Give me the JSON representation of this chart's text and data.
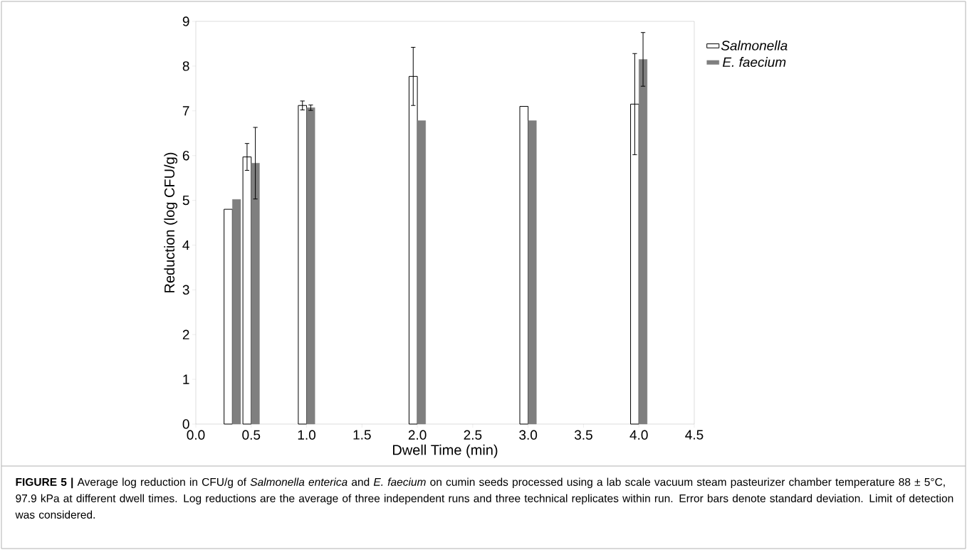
{
  "chart_data": {
    "type": "bar",
    "xlabel": "Dwell Time (min)",
    "ylabel": "Reduction (log CFU/g)",
    "x": [
      0.33,
      0.5,
      1.0,
      2.0,
      3.0,
      4.0
    ],
    "series": [
      {
        "name": "Salmonella",
        "color": "#ffffff",
        "values": [
          4.8,
          5.97,
          7.12,
          7.77,
          7.1,
          7.15
        ],
        "errors": [
          null,
          0.3,
          0.1,
          0.65,
          null,
          1.13
        ]
      },
      {
        "name": "E. faecium",
        "color": "#7f7f7f",
        "values": [
          5.02,
          5.83,
          7.07,
          6.78,
          6.78,
          8.15
        ],
        "errors": [
          null,
          0.8,
          0.06,
          null,
          null,
          0.6
        ]
      }
    ],
    "xlim": [
      0,
      4.5
    ],
    "xticks": [
      {
        "value": 0,
        "label": "0.0"
      },
      {
        "value": 0.5,
        "label": "0.5"
      },
      {
        "value": 1,
        "label": "1.0"
      },
      {
        "value": 1.5,
        "label": "1.5"
      },
      {
        "value": 2,
        "label": "2.0"
      },
      {
        "value": 2.5,
        "label": "2.5"
      },
      {
        "value": 3,
        "label": "3.0"
      },
      {
        "value": 3.5,
        "label": "3.5"
      },
      {
        "value": 4,
        "label": "4.0"
      },
      {
        "value": 4.5,
        "label": "4.5"
      }
    ],
    "ylim": [
      0,
      9
    ],
    "yticks": [
      0,
      1,
      2,
      3,
      4,
      5,
      6,
      7,
      8,
      9
    ],
    "grid": false,
    "legend": "right",
    "annotations": [
      "**FIGURE 5 |** Average log reduction in CFU/g of *Salmonella enterica* and *E. faecium* on cumin seeds processed using a lab scale vacuum steam pasteurizer chamber temperature 88 ± 5°C, 97.9 kPa at different dwell times. Log reductions are the average of three independent runs and three technical replicates within run. Error bars denote standard deviation. Limit of detection was considered."
    ]
  }
}
